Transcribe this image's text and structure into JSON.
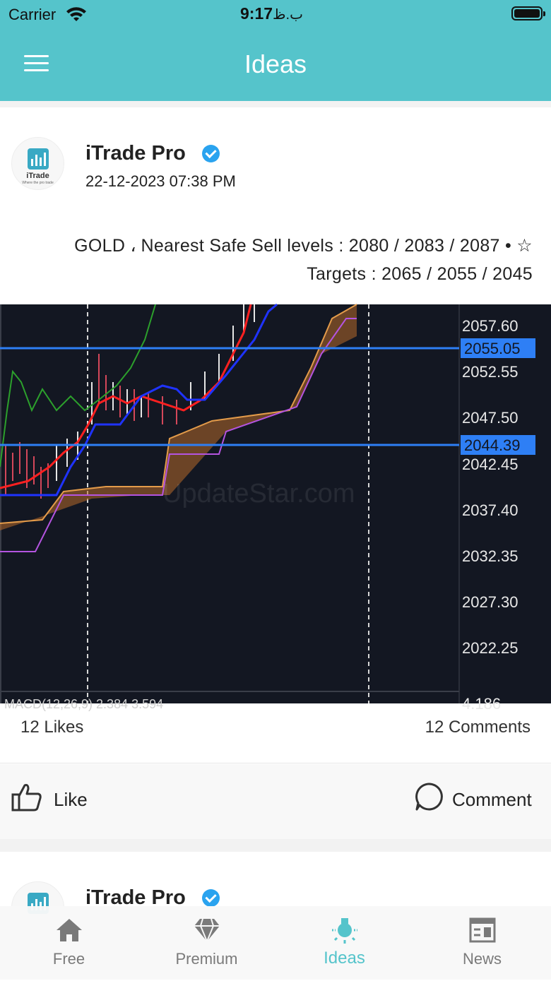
{
  "status_bar": {
    "carrier": "Carrier",
    "time": "9:17",
    "locale_suffix": "ب.ظ"
  },
  "nav": {
    "title": "Ideas"
  },
  "posts": [
    {
      "author": "iTrade Pro",
      "date": "22-12-2023 07:38 PM",
      "avatar_brand": "iTrade",
      "avatar_tagline": "Where the pro trade",
      "text_line1": "GOLD ، Nearest Safe Sell levels : 2080 / 2083 / 2087 • ☆",
      "text_line2": "Targets : 2065 / 2055 / 2045",
      "chart": {
        "price_ticks": [
          "2057.60",
          "2052.55",
          "2047.50",
          "2042.45",
          "2037.40",
          "2032.35",
          "2027.30",
          "2022.25"
        ],
        "highlight_levels": [
          "2055.05",
          "2044.39"
        ],
        "indicator_label": "MACD(12,26,9) 2.384 3.594",
        "bottom_value": "4.186",
        "watermark": "UpdateStar.com"
      },
      "likes": "12 Likes",
      "comments": "12 Comments",
      "like_label": "Like",
      "comment_label": "Comment"
    },
    {
      "author": "iTrade Pro"
    }
  ],
  "tabs": [
    {
      "label": "Free",
      "icon": "home-icon",
      "active": false
    },
    {
      "label": "Premium",
      "icon": "diamond-icon",
      "active": false
    },
    {
      "label": "Ideas",
      "icon": "lightbulb-icon",
      "active": true
    },
    {
      "label": "News",
      "icon": "newspaper-icon",
      "active": false
    }
  ],
  "colors": {
    "accent": "#55c4cb",
    "verified": "#2aa3ef",
    "chart_bg": "#131722",
    "level_line": "#2e7ff5"
  }
}
